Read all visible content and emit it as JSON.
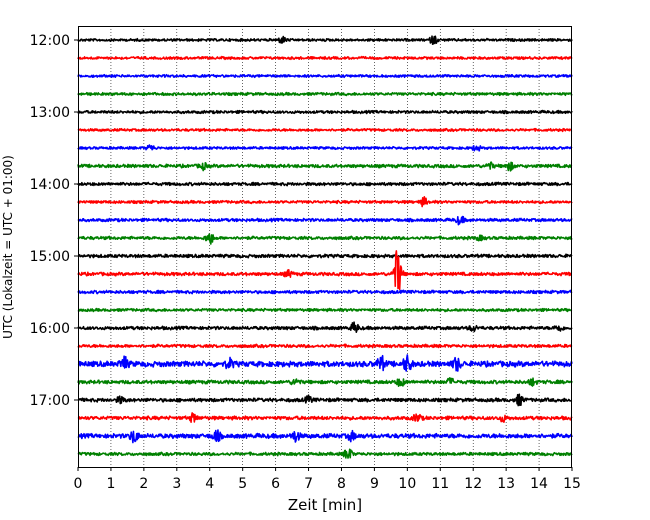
{
  "chart_data": {
    "type": "line",
    "title": "",
    "xlabel": "Zeit  [min]",
    "ylabel": "UTC (Lokalzeit = UTC + 01:00)",
    "xlim": [
      0,
      15
    ],
    "x_ticks": [
      0,
      1,
      2,
      3,
      4,
      5,
      6,
      7,
      8,
      9,
      10,
      11,
      12,
      13,
      14,
      15
    ],
    "y_tick_labels": [
      "12:00",
      "13:00",
      "14:00",
      "15:00",
      "16:00",
      "17:00"
    ],
    "x_grid": "dotted vertical lines at every minute",
    "trace_interval_minutes": 15,
    "trace_colors": [
      "#000000",
      "#ff0000",
      "#0000ff",
      "#008000"
    ],
    "traces": [
      {
        "start": "12:00",
        "color": "#000000",
        "noise": 1.0,
        "events": [
          {
            "t": 6.2,
            "amp": 3
          },
          {
            "t": 10.8,
            "amp": 4
          }
        ]
      },
      {
        "start": "12:15",
        "color": "#ff0000",
        "noise": 1.0,
        "events": []
      },
      {
        "start": "12:30",
        "color": "#0000ff",
        "noise": 1.0,
        "events": []
      },
      {
        "start": "12:45",
        "color": "#008000",
        "noise": 1.1,
        "events": []
      },
      {
        "start": "13:00",
        "color": "#000000",
        "noise": 1.1,
        "events": []
      },
      {
        "start": "13:15",
        "color": "#ff0000",
        "noise": 1.0,
        "events": []
      },
      {
        "start": "13:30",
        "color": "#0000ff",
        "noise": 1.0,
        "events": [
          {
            "t": 2.2,
            "amp": 3
          },
          {
            "t": 12.1,
            "amp": 3
          }
        ]
      },
      {
        "start": "13:45",
        "color": "#008000",
        "noise": 1.3,
        "events": [
          {
            "t": 3.8,
            "amp": 3
          },
          {
            "t": 12.5,
            "amp": 3
          },
          {
            "t": 13.1,
            "amp": 4
          }
        ]
      },
      {
        "start": "14:00",
        "color": "#000000",
        "noise": 1.2,
        "events": []
      },
      {
        "start": "14:15",
        "color": "#ff0000",
        "noise": 1.1,
        "events": [
          {
            "t": 10.5,
            "amp": 4
          }
        ]
      },
      {
        "start": "14:30",
        "color": "#0000ff",
        "noise": 1.2,
        "events": [
          {
            "t": 11.6,
            "amp": 4
          }
        ]
      },
      {
        "start": "14:45",
        "color": "#008000",
        "noise": 1.2,
        "events": [
          {
            "t": 4.0,
            "amp": 6
          },
          {
            "t": 12.2,
            "amp": 2
          }
        ]
      },
      {
        "start": "15:00",
        "color": "#000000",
        "noise": 1.3,
        "events": []
      },
      {
        "start": "15:15",
        "color": "#ff0000",
        "noise": 1.3,
        "events": [
          {
            "t": 9.7,
            "amp": 24
          },
          {
            "t": 6.4,
            "amp": 3
          }
        ]
      },
      {
        "start": "15:30",
        "color": "#0000ff",
        "noise": 1.2,
        "events": []
      },
      {
        "start": "15:45",
        "color": "#008000",
        "noise": 1.1,
        "events": []
      },
      {
        "start": "16:00",
        "color": "#000000",
        "noise": 1.3,
        "events": [
          {
            "t": 8.4,
            "amp": 5
          },
          {
            "t": 12.0,
            "amp": 3
          },
          {
            "t": 14.6,
            "amp": 3
          }
        ]
      },
      {
        "start": "16:15",
        "color": "#ff0000",
        "noise": 1.2,
        "events": []
      },
      {
        "start": "16:30",
        "color": "#0000ff",
        "noise": 2.2,
        "events": [
          {
            "t": 1.4,
            "amp": 6
          },
          {
            "t": 9.2,
            "amp": 7
          },
          {
            "t": 10.0,
            "amp": 8
          },
          {
            "t": 11.5,
            "amp": 6
          },
          {
            "t": 4.6,
            "amp": 4
          }
        ]
      },
      {
        "start": "16:45",
        "color": "#008000",
        "noise": 1.4,
        "events": [
          {
            "t": 6.6,
            "amp": 3
          },
          {
            "t": 9.8,
            "amp": 4
          },
          {
            "t": 11.3,
            "amp": 3
          },
          {
            "t": 13.8,
            "amp": 3
          }
        ]
      },
      {
        "start": "17:00",
        "color": "#000000",
        "noise": 1.4,
        "events": [
          {
            "t": 1.3,
            "amp": 3
          },
          {
            "t": 7.0,
            "amp": 3
          },
          {
            "t": 13.4,
            "amp": 5
          }
        ]
      },
      {
        "start": "17:15",
        "color": "#ff0000",
        "noise": 1.4,
        "events": [
          {
            "t": 3.5,
            "amp": 4
          },
          {
            "t": 10.3,
            "amp": 4
          },
          {
            "t": 12.9,
            "amp": 3
          }
        ]
      },
      {
        "start": "17:30",
        "color": "#0000ff",
        "noise": 1.8,
        "events": [
          {
            "t": 1.7,
            "amp": 6
          },
          {
            "t": 4.2,
            "amp": 5
          },
          {
            "t": 6.6,
            "amp": 5
          },
          {
            "t": 8.3,
            "amp": 4
          }
        ]
      },
      {
        "start": "17:45",
        "color": "#008000",
        "noise": 1.2,
        "events": [
          {
            "t": 8.2,
            "amp": 6
          }
        ]
      }
    ]
  }
}
